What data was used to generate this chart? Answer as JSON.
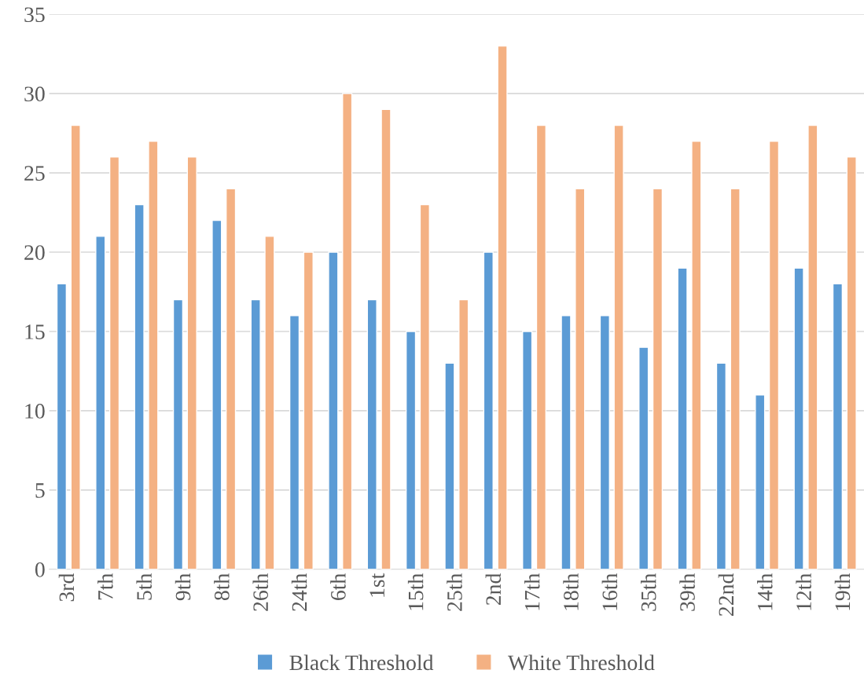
{
  "chart_data": {
    "type": "bar",
    "categories": [
      "3rd",
      "7th",
      "5th",
      "9th",
      "8th",
      "26th",
      "24th",
      "6th",
      "1st",
      "15th",
      "25th",
      "2nd",
      "17th",
      "18th",
      "16th",
      "35th",
      "39th",
      "22nd",
      "14th",
      "12th",
      "19th"
    ],
    "series": [
      {
        "name": "Black Threshold",
        "color": "#5b9bd5",
        "values": [
          18,
          21,
          23,
          17,
          22,
          17,
          16,
          20,
          17,
          15,
          13,
          20,
          15,
          16,
          16,
          14,
          19,
          13,
          11,
          19,
          18
        ]
      },
      {
        "name": "White Threshold",
        "color": "#f4b183",
        "values": [
          28,
          26,
          27,
          26,
          24,
          21,
          20,
          30,
          29,
          23,
          17,
          33,
          28,
          24,
          28,
          24,
          27,
          24,
          27,
          28,
          26
        ]
      }
    ],
    "ylim": [
      0,
      35
    ],
    "yticks": [
      0,
      5,
      10,
      15,
      20,
      25,
      30,
      35
    ],
    "grid": "y",
    "legend": "bottom"
  }
}
